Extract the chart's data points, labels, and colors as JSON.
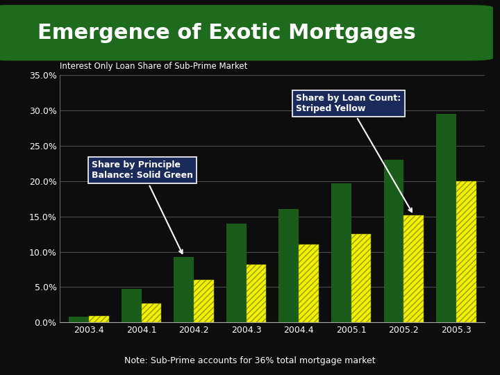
{
  "title": "Emergence of Exotic Mortgages",
  "subtitle": "Interest Only Loan Share of Sub-Prime Market",
  "note": "Note: Sub-Prime accounts for 36% total mortgage market",
  "categories": [
    "2003.4",
    "2004.1",
    "2004.2",
    "2004.3",
    "2004.4",
    "2005.1",
    "2005.2",
    "2005.3"
  ],
  "solid_green": [
    0.8,
    4.8,
    9.3,
    14.0,
    16.0,
    19.7,
    23.0,
    29.5
  ],
  "striped_yellow": [
    0.9,
    2.7,
    6.0,
    8.2,
    11.0,
    12.5,
    15.2,
    20.0
  ],
  "solid_green_color": "#1a5c1a",
  "striped_yellow_color": "#f0f000",
  "background_color": "#0d0d0d",
  "title_bg_color": "#1e6b1e",
  "text_color": "#ffffff",
  "axis_text_color": "#ffffff",
  "ylim": [
    0,
    35
  ],
  "yticks": [
    0,
    5,
    10,
    15,
    20,
    25,
    30,
    35
  ],
  "ytick_labels": [
    "0.0%",
    "5.0%",
    "10.0%",
    "15.0%",
    "20.0%",
    "25.0%",
    "30.0%",
    "35.0%"
  ],
  "annotation1_text": "Share by Principle\nBalance: Solid Green",
  "annotation2_text": "Share by Loan Count:\nStriped Yellow",
  "annot_box_color": "#1a2a5a",
  "bar_width": 0.38
}
